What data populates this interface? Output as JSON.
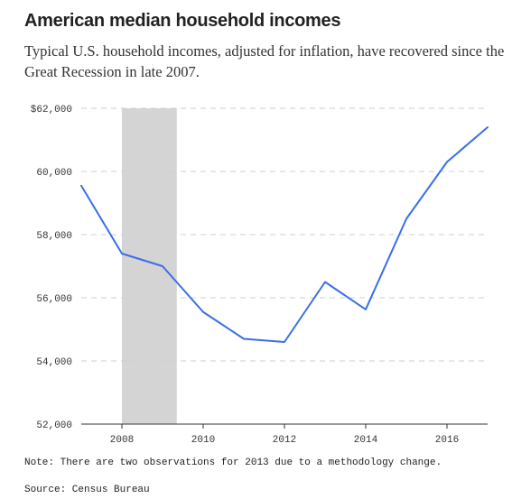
{
  "header": {
    "title": "American median household incomes",
    "subtitle": "Typical U.S. household incomes, adjusted for inflation, have recovered since the Great Recession in late 2007."
  },
  "chart_data": {
    "type": "line",
    "x": [
      2007,
      2008,
      2009,
      2010,
      2011,
      2012,
      2013,
      2014,
      2015,
      2016,
      2017
    ],
    "series": [
      {
        "values": [
          59550,
          57400,
          57000,
          55550,
          54700,
          54600,
          56500,
          55630,
          58500,
          60300,
          61400
        ],
        "color": "#3a6ee8"
      }
    ],
    "xlim": [
      2007,
      2017
    ],
    "ylim": [
      52000,
      62000
    ],
    "x_ticks": [
      2008,
      2010,
      2012,
      2014,
      2016
    ],
    "y_ticks": [
      {
        "value": 52000,
        "label": "52,000"
      },
      {
        "value": 54000,
        "label": "54,000"
      },
      {
        "value": 56000,
        "label": "56,000"
      },
      {
        "value": 58000,
        "label": "58,000"
      },
      {
        "value": 60000,
        "label": "60,000"
      },
      {
        "value": 62000,
        "label": "$62,000"
      }
    ],
    "recession_band": {
      "start": 2008.0,
      "end": 2009.35,
      "color": "#d4d4d4"
    },
    "grid": "horizontal-dashed"
  },
  "footer": {
    "note": "Note: There are two observations for 2013 due to a methodology change.",
    "source": "Source: Census Bureau"
  }
}
